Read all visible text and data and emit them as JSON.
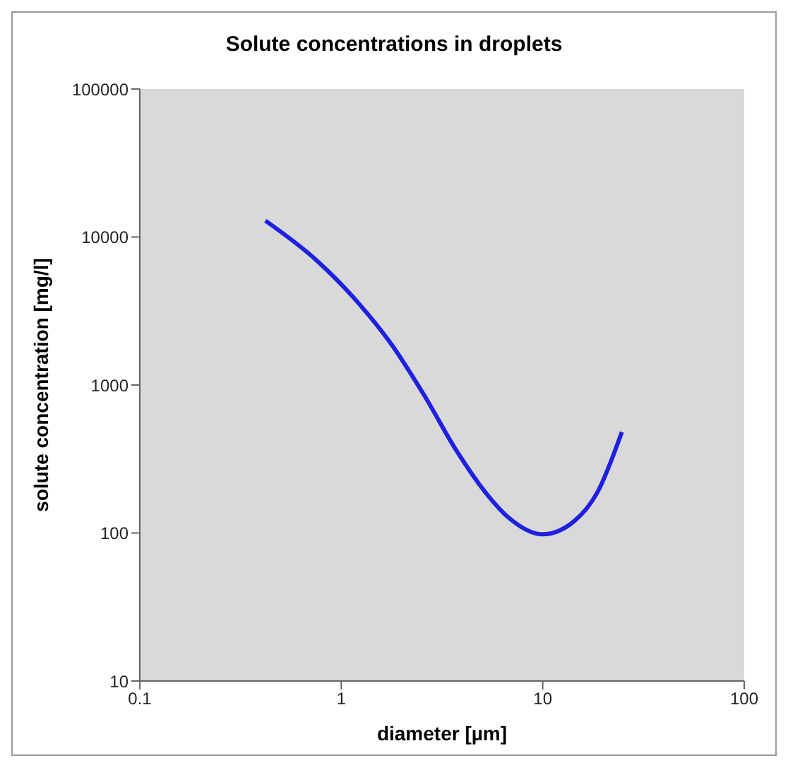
{
  "chart_data": {
    "type": "line",
    "title": "Solute concentrations in droplets",
    "xlabel": "diameter [µm]",
    "ylabel": "solute concentration [mg/l]",
    "log": "xy",
    "grid": false,
    "legend": false,
    "marker": "none",
    "line_style": "solid",
    "x": [
      0.42,
      0.75,
      1.16,
      1.77,
      2.58,
      3.75,
      5.18,
      6.77,
      10,
      14.3,
      18.7,
      24.7
    ],
    "series": [
      {
        "color": "#2020e0",
        "values": [
          12900,
          7000,
          3850,
          1890,
          853,
          356,
          189,
          127,
          98,
          120,
          189,
          482
        ]
      }
    ],
    "xlim": [
      0.1,
      100
    ],
    "xticks": [
      0.1,
      1,
      10,
      100
    ],
    "ylim": [
      10,
      100000
    ],
    "yticks": [
      10,
      100,
      1000,
      10000,
      100000
    ]
  }
}
